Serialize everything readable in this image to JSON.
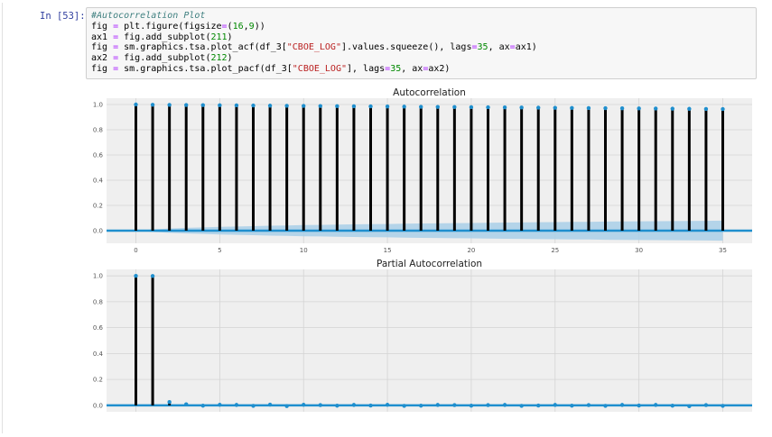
{
  "cell": {
    "prompt": "In [53]:",
    "code": [
      "#Autocorrelation Plot",
      "fig = plt.figure(figsize=(16,9))",
      "ax1 = fig.add_subplot(211)",
      "fig = sm.graphics.tsa.plot_acf(df_3[\"CBOE_LOG\"].values.squeeze(), lags=35, ax=ax1)",
      "ax2 = fig.add_subplot(212)",
      "fig = sm.graphics.tsa.plot_pacf(df_3[\"CBOE_LOG\"], lags=35, ax=ax2)"
    ]
  },
  "colors": {
    "stem": "#000000",
    "marker": "#1f8fce",
    "baseline": "#1f8fce",
    "confidence": "#a9cfe8",
    "plot_bg": "#efefef",
    "grid": "#d4d4d4"
  },
  "chart_data": [
    {
      "type": "stem",
      "title": "Autocorrelation",
      "xlabel": "",
      "ylabel": "",
      "xlim": [
        -1.75,
        36.75
      ],
      "ylim": [
        -0.1,
        1.05
      ],
      "xticks": [
        0,
        5,
        10,
        15,
        20,
        25,
        30,
        35
      ],
      "yticks": [
        "0.0",
        "0.2",
        "0.4",
        "0.6",
        "0.8",
        "1.0"
      ],
      "x": [
        0,
        1,
        2,
        3,
        4,
        5,
        6,
        7,
        8,
        9,
        10,
        11,
        12,
        13,
        14,
        15,
        16,
        17,
        18,
        19,
        20,
        21,
        22,
        23,
        24,
        25,
        26,
        27,
        28,
        29,
        30,
        31,
        32,
        33,
        34,
        35
      ],
      "values": [
        1.0,
        0.998,
        0.997,
        0.996,
        0.995,
        0.994,
        0.993,
        0.992,
        0.991,
        0.99,
        0.989,
        0.988,
        0.987,
        0.986,
        0.985,
        0.984,
        0.983,
        0.982,
        0.981,
        0.98,
        0.979,
        0.978,
        0.977,
        0.976,
        0.975,
        0.974,
        0.973,
        0.972,
        0.971,
        0.97,
        0.969,
        0.968,
        0.967,
        0.966,
        0.965,
        0.964
      ],
      "confidence_upper": [
        0.0,
        0.01,
        0.017,
        0.022,
        0.026,
        0.03,
        0.033,
        0.036,
        0.039,
        0.041,
        0.044,
        0.046,
        0.048,
        0.05,
        0.052,
        0.053,
        0.055,
        0.057,
        0.058,
        0.06,
        0.061,
        0.063,
        0.064,
        0.065,
        0.067,
        0.068,
        0.069,
        0.07,
        0.072,
        0.073,
        0.074,
        0.075,
        0.076,
        0.077,
        0.078,
        0.079
      ],
      "grid": true
    },
    {
      "type": "stem",
      "title": "Partial Autocorrelation",
      "xlabel": "",
      "ylabel": "",
      "xlim": [
        -1.75,
        36.75
      ],
      "ylim": [
        -0.05,
        1.05
      ],
      "xticks": [
        0,
        5,
        10,
        15,
        20,
        25,
        30,
        35
      ],
      "yticks": [
        "0.0",
        "0.2",
        "0.4",
        "0.6",
        "0.8",
        "1.0"
      ],
      "x": [
        0,
        1,
        2,
        3,
        4,
        5,
        6,
        7,
        8,
        9,
        10,
        11,
        12,
        13,
        14,
        15,
        16,
        17,
        18,
        19,
        20,
        21,
        22,
        23,
        24,
        25,
        26,
        27,
        28,
        29,
        30,
        31,
        32,
        33,
        34,
        35
      ],
      "values": [
        1.0,
        0.999,
        0.025,
        0.008,
        -0.003,
        0.004,
        0.003,
        -0.004,
        0.005,
        -0.006,
        0.004,
        0.002,
        -0.003,
        0.003,
        -0.002,
        0.004,
        -0.004,
        -0.003,
        0.003,
        0.002,
        -0.003,
        0.002,
        0.003,
        -0.004,
        -0.002,
        0.003,
        -0.003,
        0.002,
        -0.004,
        0.003,
        -0.002,
        0.003,
        -0.003,
        -0.007,
        0.002,
        -0.004
      ],
      "confidence_upper": 0.004,
      "grid": true
    }
  ]
}
